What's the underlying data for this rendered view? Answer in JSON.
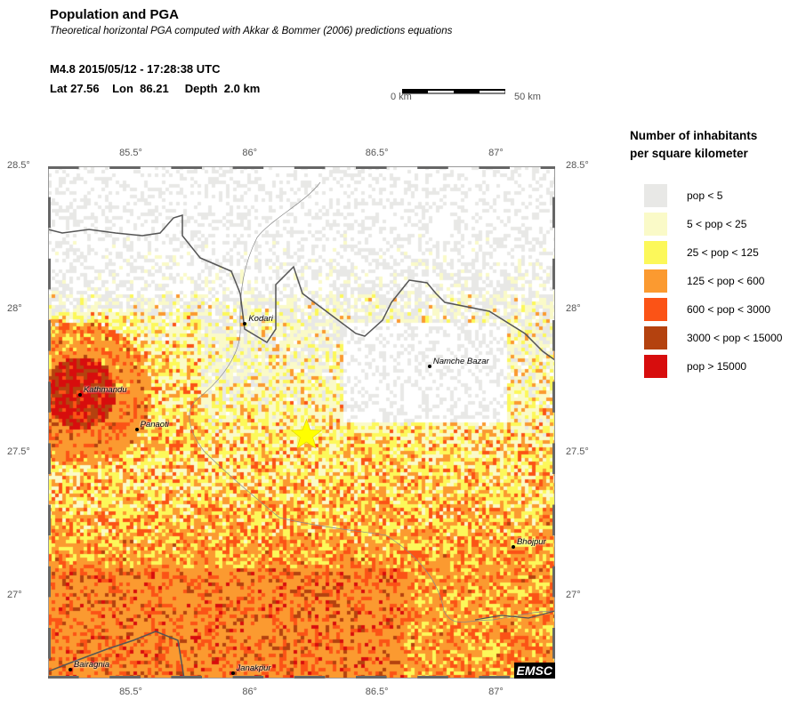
{
  "header": {
    "title": "Population and PGA",
    "subtitle": "Theoretical horizontal PGA computed with Akkar & Bommer (2006) predictions equations",
    "event_line": "M4.8  2015/05/12 - 17:28:38 UTC",
    "location_line": "Lat 27.56    Lon  86.21     Depth  2.0 km"
  },
  "scale_bar": {
    "start_label": "0 km",
    "end_label": "50 km"
  },
  "map": {
    "lon_range": [
      85.16,
      87.22
    ],
    "lat_range": [
      26.71,
      28.5
    ],
    "lon_ticks": [
      {
        "value": 85.5,
        "label": "85.5°"
      },
      {
        "value": 86,
        "label": "86°"
      },
      {
        "value": 86.5,
        "label": "86.5°"
      },
      {
        "value": 87,
        "label": "87°"
      }
    ],
    "lat_ticks": [
      {
        "value": 28.5,
        "label": "28.5°"
      },
      {
        "value": 28,
        "label": "28°"
      },
      {
        "value": 27.5,
        "label": "27.5°"
      },
      {
        "value": 27,
        "label": "27°"
      }
    ],
    "epicenter": {
      "lon": 86.21,
      "lat": 27.56,
      "icon": "star-icon",
      "color": "#ffff00"
    },
    "cities": [
      {
        "name": "Kathmandu",
        "lon": 85.29,
        "lat": 27.7
      },
      {
        "name": "Panaoti",
        "lon": 85.52,
        "lat": 27.58
      },
      {
        "name": "Kodari",
        "lon": 85.96,
        "lat": 27.95
      },
      {
        "name": "Namche Bazar",
        "lon": 86.71,
        "lat": 27.8
      },
      {
        "name": "Bhojpur",
        "lon": 87.05,
        "lat": 27.17
      },
      {
        "name": "Bairagnia",
        "lon": 85.25,
        "lat": 26.74
      },
      {
        "name": "Janakpur",
        "lon": 85.91,
        "lat": 26.73
      }
    ],
    "logo": "EMSC"
  },
  "legend": {
    "title_line1": "Number of inhabitants",
    "title_line2": "per square kilometer",
    "items": [
      {
        "label": "pop < 5",
        "color": "#e8e8e6"
      },
      {
        "label": "5 < pop < 25",
        "color": "#fafac8"
      },
      {
        "label": "25 < pop < 125",
        "color": "#fcf85a"
      },
      {
        "label": "125 < pop < 600",
        "color": "#fb9a30"
      },
      {
        "label": "600 < pop < 3000",
        "color": "#fb5316"
      },
      {
        "label": "3000 < pop < 15000",
        "color": "#b4420f"
      },
      {
        "label": "pop > 15000",
        "color": "#d70d0d"
      }
    ]
  }
}
